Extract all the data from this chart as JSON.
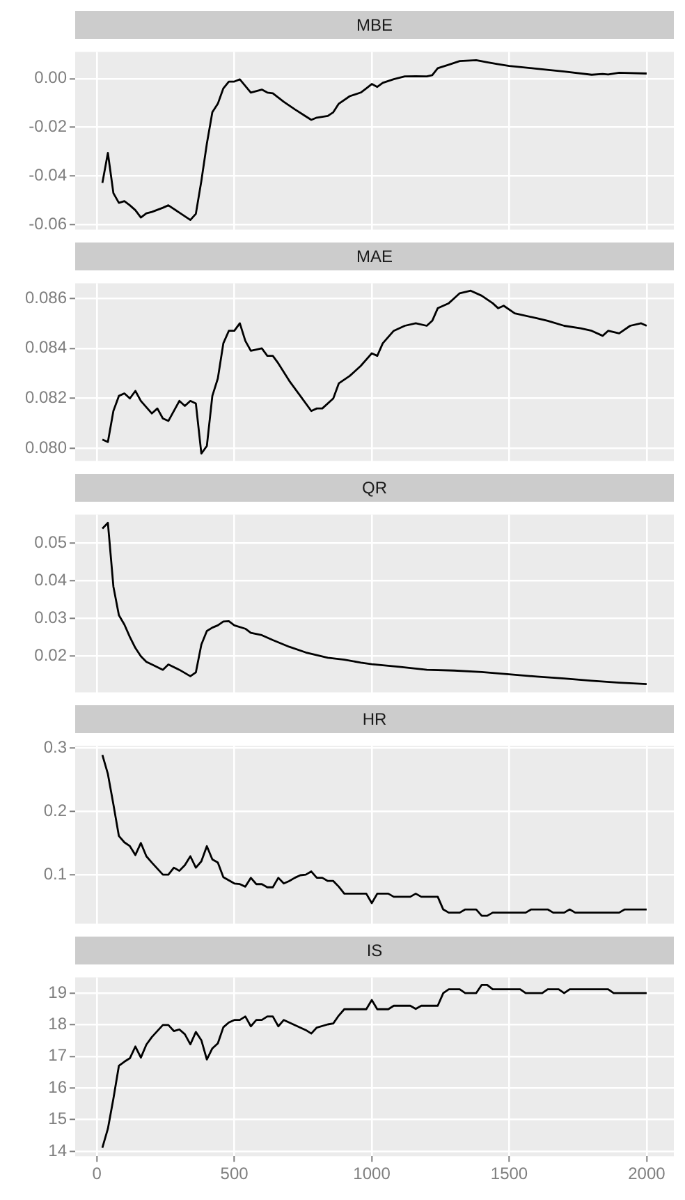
{
  "chart_data": [
    {
      "type": "line",
      "title": "MBE",
      "color": "#000000",
      "tick_labels": "y",
      "grid": true,
      "x": [
        20,
        40,
        60,
        80,
        100,
        120,
        140,
        160,
        180,
        200,
        240,
        260,
        300,
        340,
        360,
        380,
        400,
        420,
        440,
        460,
        480,
        500,
        520,
        540,
        560,
        600,
        620,
        640,
        680,
        720,
        760,
        780,
        800,
        840,
        860,
        880,
        920,
        960,
        980,
        1000,
        1020,
        1040,
        1080,
        1120,
        1160,
        1200,
        1220,
        1240,
        1280,
        1320,
        1380,
        1420,
        1460,
        1500,
        1600,
        1700,
        1800,
        1840,
        1860,
        1900,
        2000
      ],
      "values": [
        -0.0428,
        -0.0305,
        -0.047,
        -0.051,
        -0.0503,
        -0.052,
        -0.054,
        -0.057,
        -0.0553,
        -0.0547,
        -0.053,
        -0.052,
        -0.055,
        -0.058,
        -0.0555,
        -0.042,
        -0.0267,
        -0.0138,
        -0.0103,
        -0.004,
        -0.0012,
        -0.0012,
        -0.0003,
        -0.003,
        -0.0057,
        -0.0045,
        -0.0057,
        -0.006,
        -0.0095,
        -0.0126,
        -0.0155,
        -0.0169,
        -0.016,
        -0.0153,
        -0.0138,
        -0.0103,
        -0.0072,
        -0.0057,
        -0.004,
        -0.0022,
        -0.0034,
        -0.0017,
        -0.0002,
        0.0009,
        0.001,
        0.0009,
        0.0014,
        0.0043,
        0.0057,
        0.0072,
        0.0076,
        0.0067,
        0.0059,
        0.0052,
        0.0041,
        0.0029,
        0.0016,
        0.0019,
        0.0017,
        0.0024,
        0.0021
      ],
      "xlim": [
        -79,
        2099
      ],
      "xticks": [
        0,
        500,
        1000,
        1500,
        2000
      ],
      "ylim": [
        -0.062,
        0.011
      ],
      "yticks": [
        -0.06,
        -0.04,
        -0.02,
        {
          "value": 0,
          "label": "0.00"
        }
      ]
    },
    {
      "type": "line",
      "title": "MAE",
      "color": "#000000",
      "tick_labels": "y",
      "grid": true,
      "x": [
        20,
        40,
        60,
        80,
        100,
        120,
        140,
        160,
        200,
        220,
        240,
        260,
        300,
        320,
        340,
        360,
        380,
        400,
        420,
        440,
        460,
        480,
        500,
        520,
        540,
        560,
        600,
        620,
        640,
        660,
        700,
        740,
        780,
        800,
        820,
        860,
        880,
        920,
        960,
        1000,
        1020,
        1040,
        1080,
        1120,
        1160,
        1200,
        1220,
        1240,
        1280,
        1300,
        1320,
        1360,
        1400,
        1440,
        1460,
        1480,
        1520,
        1600,
        1640,
        1700,
        1760,
        1800,
        1840,
        1860,
        1900,
        1940,
        1980,
        2000
      ],
      "values": [
        0.08036,
        0.08026,
        0.0815,
        0.0821,
        0.0822,
        0.082,
        0.0823,
        0.0819,
        0.0814,
        0.0816,
        0.0812,
        0.0811,
        0.0819,
        0.0817,
        0.0819,
        0.0818,
        0.0798,
        0.0801,
        0.0821,
        0.0828,
        0.0842,
        0.0847,
        0.0847,
        0.085,
        0.0843,
        0.0839,
        0.084,
        0.0837,
        0.0837,
        0.0834,
        0.0827,
        0.0821,
        0.0815,
        0.0816,
        0.0816,
        0.082,
        0.0826,
        0.0829,
        0.0833,
        0.0838,
        0.0837,
        0.0842,
        0.0847,
        0.0849,
        0.085,
        0.0849,
        0.0851,
        0.0856,
        0.0858,
        0.086,
        0.0862,
        0.0863,
        0.0861,
        0.0858,
        0.0856,
        0.0857,
        0.0854,
        0.0852,
        0.0851,
        0.0849,
        0.0848,
        0.0847,
        0.0845,
        0.0847,
        0.0846,
        0.0849,
        0.085,
        0.0849
      ],
      "xlim": [
        -79,
        2099
      ],
      "xticks": [
        0,
        500,
        1000,
        1500,
        2000
      ],
      "ylim": [
        0.0795,
        0.0866
      ],
      "yticks": [
        {
          "value": 0.08,
          "label": "0.080"
        },
        0.082,
        0.084,
        0.086
      ]
    },
    {
      "type": "line",
      "title": "QR",
      "color": "#000000",
      "tick_labels": "y",
      "grid": true,
      "x": [
        20,
        40,
        60,
        80,
        100,
        120,
        140,
        160,
        180,
        200,
        240,
        260,
        300,
        340,
        360,
        380,
        400,
        420,
        440,
        460,
        480,
        500,
        540,
        560,
        600,
        640,
        700,
        760,
        800,
        840,
        900,
        960,
        1000,
        1100,
        1200,
        1300,
        1400,
        1500,
        1600,
        1700,
        1800,
        1900,
        2000
      ],
      "values": [
        0.0539,
        0.0554,
        0.0385,
        0.0309,
        0.0284,
        0.0251,
        0.0222,
        0.02,
        0.0185,
        0.0178,
        0.0164,
        0.0178,
        0.0164,
        0.0147,
        0.0157,
        0.0231,
        0.0267,
        0.0276,
        0.0282,
        0.0292,
        0.0293,
        0.0282,
        0.0273,
        0.0262,
        0.0256,
        0.0243,
        0.0225,
        0.021,
        0.0203,
        0.0196,
        0.0191,
        0.0183,
        0.0179,
        0.0172,
        0.0164,
        0.0162,
        0.0158,
        0.0152,
        0.0146,
        0.0141,
        0.0135,
        0.013,
        0.0126
      ],
      "xlim": [
        -79,
        2099
      ],
      "xticks": [
        0,
        500,
        1000,
        1500,
        2000
      ],
      "ylim": [
        0.0104,
        0.0576
      ],
      "yticks": [
        0.02,
        0.03,
        0.04,
        0.05
      ]
    },
    {
      "type": "line",
      "title": "HR",
      "color": "#000000",
      "tick_labels": "y",
      "grid": true,
      "x": [
        20,
        40,
        60,
        80,
        100,
        120,
        140,
        160,
        180,
        200,
        240,
        260,
        280,
        300,
        320,
        340,
        360,
        380,
        400,
        420,
        440,
        460,
        480,
        500,
        520,
        540,
        560,
        580,
        600,
        620,
        640,
        660,
        680,
        700,
        720,
        740,
        760,
        780,
        800,
        820,
        840,
        860,
        880,
        900,
        980,
        1000,
        1020,
        1060,
        1080,
        1140,
        1160,
        1180,
        1240,
        1260,
        1280,
        1320,
        1340,
        1380,
        1400,
        1420,
        1440,
        1560,
        1580,
        1640,
        1660,
        1700,
        1720,
        1740,
        1900,
        1920,
        2000
      ],
      "values": [
        0.289,
        0.259,
        0.211,
        0.161,
        0.151,
        0.145,
        0.131,
        0.15,
        0.129,
        0.119,
        0.1,
        0.1,
        0.111,
        0.106,
        0.115,
        0.129,
        0.111,
        0.121,
        0.145,
        0.124,
        0.119,
        0.096,
        0.091,
        0.086,
        0.085,
        0.081,
        0.095,
        0.085,
        0.085,
        0.08,
        0.08,
        0.095,
        0.086,
        0.09,
        0.095,
        0.099,
        0.1,
        0.105,
        0.095,
        0.095,
        0.09,
        0.09,
        0.081,
        0.07,
        0.07,
        0.055,
        0.07,
        0.07,
        0.065,
        0.065,
        0.07,
        0.065,
        0.065,
        0.045,
        0.04,
        0.04,
        0.045,
        0.045,
        0.035,
        0.035,
        0.04,
        0.04,
        0.045,
        0.045,
        0.04,
        0.04,
        0.045,
        0.04,
        0.04,
        0.045,
        0.045
      ],
      "xlim": [
        -79,
        2099
      ],
      "xticks": [
        0,
        500,
        1000,
        1500,
        2000
      ],
      "ylim": [
        0.0224,
        0.3033
      ],
      "yticks": [
        0.1,
        0.2,
        0.3
      ]
    },
    {
      "type": "line",
      "title": "IS",
      "color": "#000000",
      "grid": true,
      "x": [
        20,
        40,
        60,
        80,
        100,
        120,
        140,
        160,
        180,
        200,
        240,
        260,
        280,
        300,
        320,
        340,
        360,
        380,
        400,
        420,
        440,
        460,
        480,
        500,
        520,
        540,
        560,
        580,
        600,
        620,
        640,
        660,
        680,
        720,
        760,
        780,
        800,
        840,
        860,
        880,
        900,
        980,
        1000,
        1020,
        1060,
        1080,
        1140,
        1160,
        1180,
        1240,
        1260,
        1280,
        1320,
        1340,
        1380,
        1400,
        1420,
        1440,
        1540,
        1560,
        1620,
        1640,
        1680,
        1700,
        1720,
        1860,
        1880,
        2000
      ],
      "values": [
        14.11,
        14.71,
        15.66,
        16.7,
        16.83,
        16.94,
        17.31,
        16.96,
        17.37,
        17.61,
        17.99,
        17.99,
        17.8,
        17.85,
        17.7,
        17.38,
        17.77,
        17.51,
        16.9,
        17.25,
        17.41,
        17.92,
        18.07,
        18.15,
        18.15,
        18.26,
        17.95,
        18.15,
        18.15,
        18.26,
        18.26,
        17.95,
        18.15,
        17.99,
        17.83,
        17.72,
        17.91,
        18.01,
        18.04,
        18.29,
        18.49,
        18.49,
        18.78,
        18.49,
        18.49,
        18.6,
        18.6,
        18.5,
        18.6,
        18.6,
        19,
        19.12,
        19.12,
        19,
        19,
        19.26,
        19.26,
        19.12,
        19.12,
        19,
        19,
        19.12,
        19.12,
        19,
        19.12,
        19.12,
        19,
        19
      ],
      "xlim": [
        -79,
        2099
      ],
      "xticks": [
        0,
        500,
        1000,
        1500,
        2000
      ],
      "ylim": [
        13.84,
        19.5
      ],
      "yticks": [
        14,
        15,
        16,
        17,
        18,
        19
      ]
    }
  ]
}
